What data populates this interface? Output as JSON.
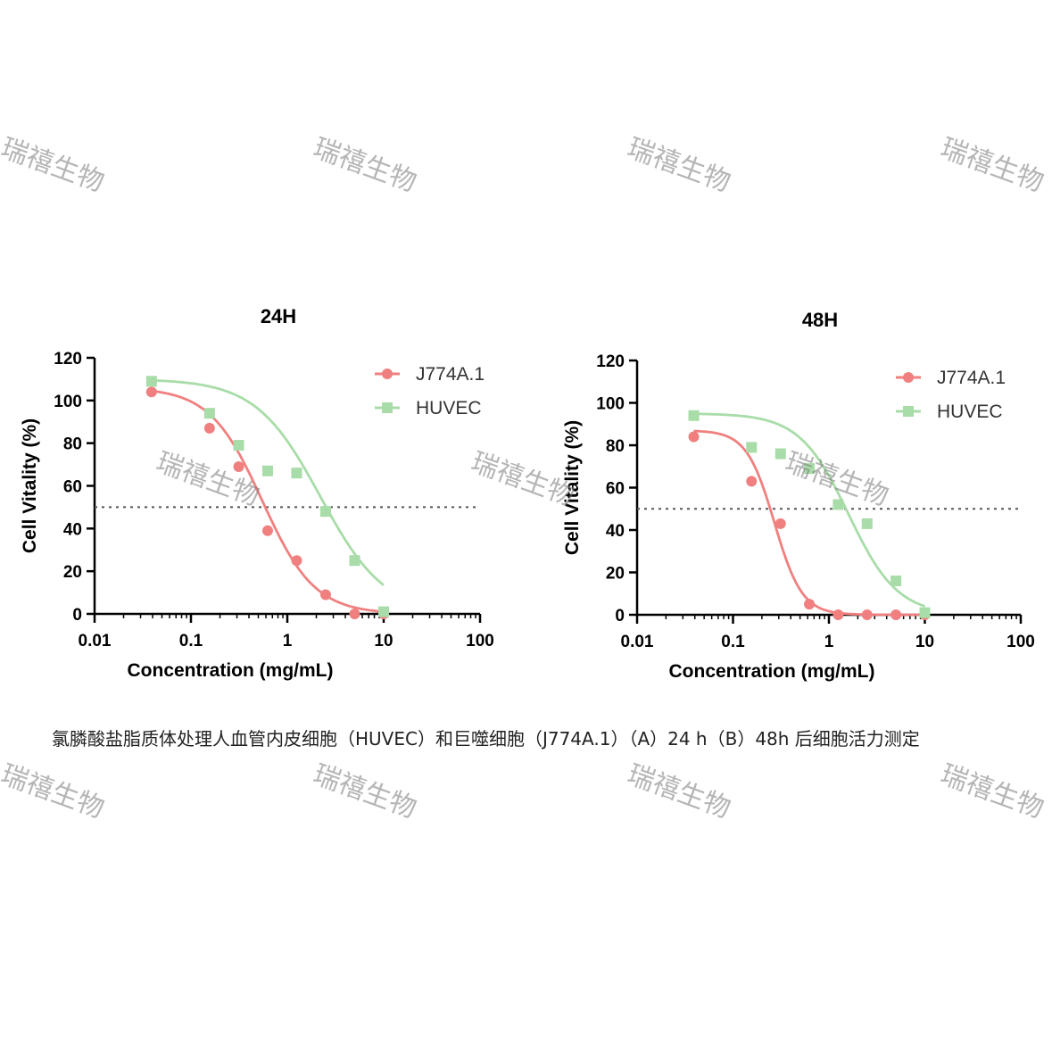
{
  "caption": "氯膦酸盐脂质体处理人血管内皮细胞（HUVEC）和巨噬细胞（J774A.1）（A）24 h（B）48h 后细胞活力测定",
  "watermark": "瑞禧生物",
  "colors": {
    "J774A.1": "#f08080",
    "HUVEC": "#a8dca8",
    "threshold": "#555555"
  },
  "chart_data": [
    {
      "type": "scatter",
      "title": "24H",
      "xlabel": "Concentration (mg/mL)",
      "ylabel": "Cell Vitality (%)",
      "xscale": "log",
      "xlim": [
        0.01,
        100
      ],
      "xticks": [
        "0.01",
        "0.1",
        "1",
        "10",
        "100"
      ],
      "ylim": [
        0,
        120
      ],
      "yticks": [
        "0",
        "20",
        "40",
        "60",
        "80",
        "100",
        "120"
      ],
      "reference_line_y": 50,
      "legend_position": "top-right",
      "series": [
        {
          "name": "J774A.1",
          "marker": "circle",
          "color": "#f08080",
          "x": [
            0.039,
            0.156,
            0.313,
            0.625,
            1.25,
            2.5,
            5,
            10
          ],
          "y": [
            104,
            87,
            69,
            39,
            25,
            9,
            0,
            0
          ],
          "fit": {
            "top": 106,
            "bottom": 0,
            "ec50": 0.55,
            "hill": 1.6,
            "xmin": 0.039,
            "xmax": 10
          }
        },
        {
          "name": "HUVEC",
          "marker": "square",
          "color": "#a8dca8",
          "x": [
            0.039,
            0.156,
            0.313,
            0.625,
            1.25,
            2.5,
            5,
            10
          ],
          "y": [
            109,
            94,
            79,
            67,
            66,
            48,
            25,
            1
          ],
          "fit": {
            "top": 110,
            "bottom": 0,
            "ec50": 2.2,
            "hill": 1.3,
            "xmin": 0.039,
            "xmax": 10
          }
        }
      ]
    },
    {
      "type": "scatter",
      "title": "48H",
      "xlabel": "Concentration (mg/mL)",
      "ylabel": "Cell Vitality (%)",
      "xscale": "log",
      "xlim": [
        0.01,
        100
      ],
      "xticks": [
        "0.01",
        "0.1",
        "1",
        "10",
        "100"
      ],
      "ylim": [
        0,
        120
      ],
      "yticks": [
        "0",
        "20",
        "40",
        "60",
        "80",
        "100",
        "120"
      ],
      "reference_line_y": 50,
      "legend_position": "top-right",
      "series": [
        {
          "name": "J774A.1",
          "marker": "circle",
          "color": "#f08080",
          "x": [
            0.039,
            0.156,
            0.313,
            0.625,
            1.25,
            2.5,
            5,
            10
          ],
          "y": [
            84,
            63,
            43,
            5,
            0,
            0,
            0,
            0
          ],
          "fit": {
            "top": 87,
            "bottom": 0,
            "ec50": 0.27,
            "hill": 3.0,
            "xmin": 0.039,
            "xmax": 10
          }
        },
        {
          "name": "HUVEC",
          "marker": "square",
          "color": "#a8dca8",
          "x": [
            0.039,
            0.156,
            0.313,
            0.625,
            1.25,
            2.5,
            5,
            10
          ],
          "y": [
            94,
            79,
            76,
            69,
            52,
            43,
            16,
            1
          ],
          "fit": {
            "top": 95,
            "bottom": 0,
            "ec50": 1.6,
            "hill": 1.7,
            "xmin": 0.039,
            "xmax": 10
          }
        }
      ]
    }
  ]
}
